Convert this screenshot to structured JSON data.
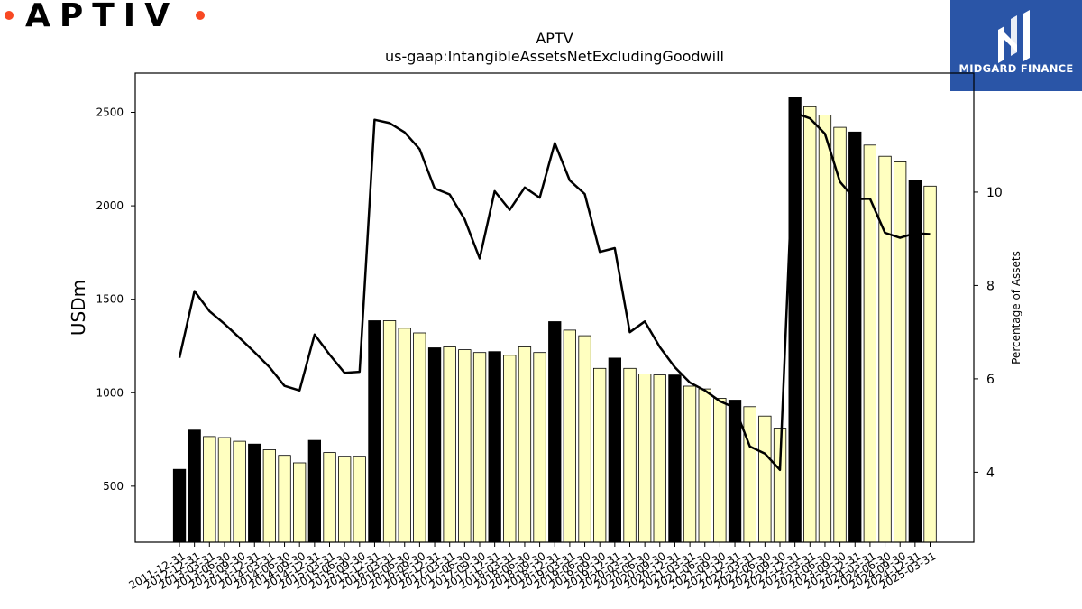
{
  "logo": {
    "text": "APTIV"
  },
  "badge": {
    "brand": "MIDGARD FINANCE"
  },
  "colors": {
    "bar_highlight": "#000000",
    "bar_default": "#ffffc0",
    "bar_edge": "#000000",
    "line": "#000000",
    "logo_dot": "#f84923",
    "badge_bg": "#2a55a7"
  },
  "chart_data": {
    "type": "bar",
    "title": "APTV",
    "subtitle": "us-gaap:IntangibleAssetsNetExcludingGoodwill",
    "ylabel": "USDm",
    "y2label": "Percentage of Assets",
    "ylim": [
      200,
      2710
    ],
    "y2lim": [
      2.5,
      12.55
    ],
    "yticks": [
      500,
      1000,
      1500,
      2000,
      2500
    ],
    "y2ticks": [
      4,
      6,
      8,
      10
    ],
    "categories": [
      "2011-12-31",
      "2012-12-31",
      "2013-03-31",
      "2013-06-30",
      "2013-09-30",
      "2013-12-31",
      "2014-03-31",
      "2014-06-30",
      "2014-09-30",
      "2014-12-31",
      "2015-03-31",
      "2015-06-30",
      "2015-09-30",
      "2015-12-31",
      "2016-03-31",
      "2016-06-30",
      "2016-09-30",
      "2016-12-31",
      "2017-03-31",
      "2017-06-30",
      "2017-09-30",
      "2017-12-31",
      "2018-03-31",
      "2018-06-30",
      "2018-09-30",
      "2018-12-31",
      "2019-03-31",
      "2019-06-30",
      "2019-09-30",
      "2019-12-31",
      "2020-03-31",
      "2020-06-30",
      "2020-09-30",
      "2020-12-31",
      "2021-03-31",
      "2021-06-30",
      "2021-09-30",
      "2021-12-31",
      "2022-03-31",
      "2022-06-30",
      "2022-09-30",
      "2022-12-31",
      "2023-03-31",
      "2023-06-30",
      "2023-09-30",
      "2023-12-31",
      "2024-03-31",
      "2024-06-30",
      "2024-09-30",
      "2024-12-31",
      "2025-03-31"
    ],
    "series": [
      {
        "values": [
          590,
          800,
          765,
          760,
          740,
          725,
          695,
          665,
          625,
          745,
          680,
          660,
          660,
          1385,
          1385,
          1345,
          1320,
          1240,
          1245,
          1230,
          1215,
          1220,
          1200,
          1245,
          1215,
          1380,
          1335,
          1305,
          1130,
          1185,
          1130,
          1100,
          1095,
          1095,
          1035,
          1020,
          970,
          960,
          925,
          875,
          810,
          2580,
          2530,
          2485,
          2420,
          2395,
          2325,
          2265,
          2235,
          2135,
          2105
        ],
        "highlight": [
          true,
          true,
          false,
          false,
          false,
          true,
          false,
          false,
          false,
          true,
          false,
          false,
          false,
          true,
          false,
          false,
          false,
          true,
          false,
          false,
          false,
          true,
          false,
          false,
          false,
          true,
          false,
          false,
          false,
          true,
          false,
          false,
          false,
          true,
          false,
          false,
          false,
          true,
          false,
          false,
          false,
          true,
          false,
          false,
          false,
          true,
          false,
          false,
          false,
          true,
          false
        ]
      },
      {
        "axis": "right",
        "values": [
          6.45,
          7.88,
          7.45,
          7.18,
          6.88,
          6.57,
          6.25,
          5.85,
          5.75,
          6.95,
          6.52,
          6.13,
          6.15,
          11.55,
          11.48,
          11.28,
          10.92,
          10.08,
          9.95,
          9.42,
          8.58,
          10.02,
          9.62,
          10.1,
          9.88,
          11.05,
          10.25,
          9.96,
          8.72,
          8.8,
          7.0,
          7.23,
          6.68,
          6.25,
          5.92,
          5.75,
          5.52,
          5.38,
          4.55,
          4.4,
          4.05,
          11.7,
          11.58,
          11.25,
          10.22,
          9.85,
          9.86,
          9.13,
          9.02,
          9.12,
          9.1
        ]
      }
    ]
  }
}
